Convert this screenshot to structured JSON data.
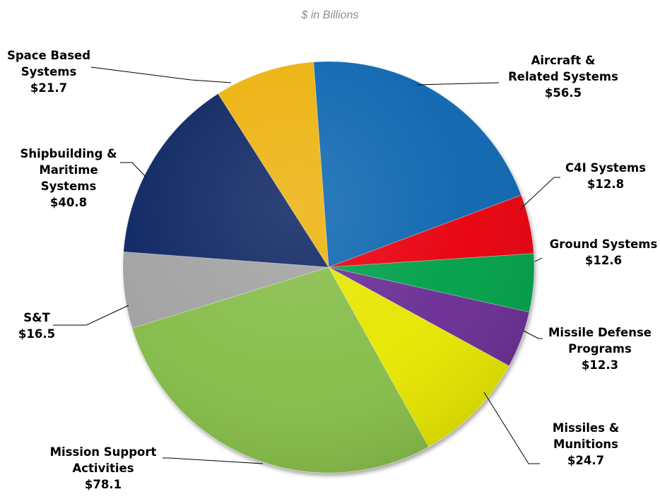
{
  "chart_data": {
    "type": "pie",
    "title": "",
    "subtitle": "$ in Billions",
    "categories": [
      "Aircraft & Related Systems",
      "C4I Systems",
      "Ground Systems",
      "Missile Defense Programs",
      "Missiles & Munitions",
      "Mission Support Activities",
      "S&T",
      "Shipbuilding & Maritime Systems",
      "Space Based Systems"
    ],
    "values": [
      56.5,
      12.8,
      12.6,
      12.3,
      24.7,
      78.1,
      16.5,
      40.8,
      21.7
    ],
    "colors": [
      "#0a66b0",
      "#e8000b",
      "#00a04a",
      "#6a2f93",
      "#e6e600",
      "#86bd4a",
      "#a2a2a2",
      "#0d2762",
      "#ecb20c"
    ],
    "legend": "none",
    "labels": [
      {
        "lines": [
          "Aircraft &",
          "Related Systems",
          "$56.5"
        ]
      },
      {
        "lines": [
          "C4I Systems",
          "$12.8"
        ]
      },
      {
        "lines": [
          "Ground Systems",
          "$12.6"
        ]
      },
      {
        "lines": [
          "Missile Defense",
          "Programs",
          "$12.3"
        ]
      },
      {
        "lines": [
          "Missiles &",
          "Munitions",
          "$24.7"
        ]
      },
      {
        "lines": [
          "Mission Support",
          "Activities",
          "$78.1"
        ]
      },
      {
        "lines": [
          "S&T",
          "$16.5"
        ]
      },
      {
        "lines": [
          "Shipbuilding &",
          "Maritime",
          "Systems",
          "$40.8"
        ]
      },
      {
        "lines": [
          "Space Based",
          "Systems",
          "$21.7"
        ]
      }
    ]
  }
}
